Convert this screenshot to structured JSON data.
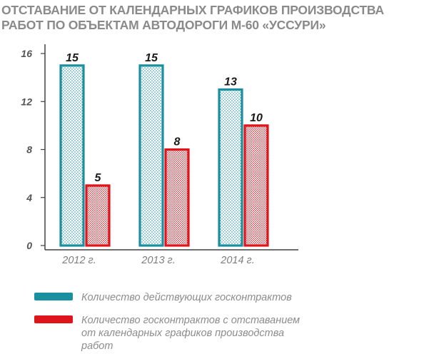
{
  "title": {
    "line1": "ОТСТАВАНИЕ ОТ КАЛЕНДАРНЫХ ГРАФИКОВ ПРОИЗВОДСТВА",
    "line2": "РАБОТ ПО ОБЪЕКТАМ АВТОДОРОГИ М-60 «УССУРИ»"
  },
  "colors": {
    "teal": "#1a8f9f",
    "red": "#e0141b",
    "title": "#8a8a8a",
    "axis": "#404040"
  },
  "chart_data": {
    "type": "bar",
    "categories": [
      "2012 г.",
      "2013 г.",
      "2014 г."
    ],
    "series": [
      {
        "name": "Количество действующих госконтрактов",
        "values": [
          15,
          15,
          13
        ],
        "color": "#1a8f9f"
      },
      {
        "name": "Количество госконтрактов с отставанием от календарных графиков производства работ",
        "values": [
          5,
          8,
          10
        ],
        "color": "#e0141b"
      }
    ],
    "ylim": [
      0,
      16
    ],
    "yticks": [
      0,
      4,
      8,
      12,
      16
    ],
    "grid": false,
    "legend_position": "bottom"
  },
  "legend": {
    "item1": "Количество действующих госконтрактов",
    "item2_line1": "Количество госконтрактов с отставанием",
    "item2_line2": "от календарных графиков производства",
    "item2_line3": "работ"
  }
}
